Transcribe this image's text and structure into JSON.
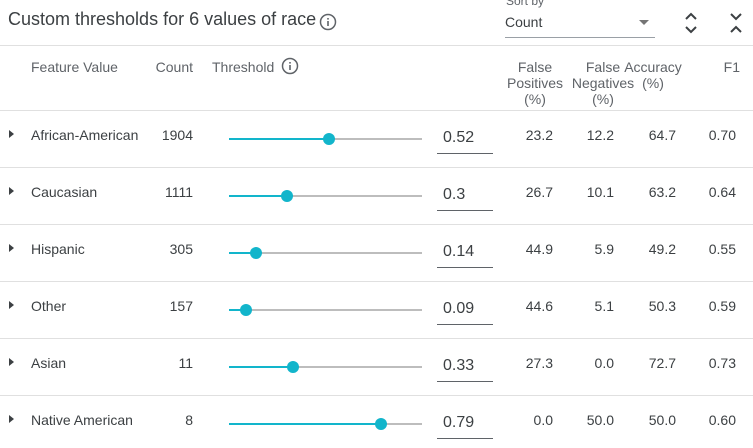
{
  "header": {
    "title": "Custom thresholds for 6 values of race",
    "sort_label": "Sort by",
    "sort_value": "Count"
  },
  "table": {
    "columns": [
      "Feature Value",
      "Count",
      "Threshold",
      "False Positives (%)",
      "False Negatives (%)",
      "Accuracy (%)",
      "F1"
    ],
    "rows": [
      {
        "feature": "African-American",
        "count": 1904,
        "threshold": 0.52,
        "fp": "23.2",
        "fn": "12.2",
        "accuracy": "64.7",
        "f1": "0.70"
      },
      {
        "feature": "Caucasian",
        "count": 1111,
        "threshold": 0.3,
        "fp": "26.7",
        "fn": "10.1",
        "accuracy": "63.2",
        "f1": "0.64"
      },
      {
        "feature": "Hispanic",
        "count": 305,
        "threshold": 0.14,
        "fp": "44.9",
        "fn": "5.9",
        "accuracy": "49.2",
        "f1": "0.55"
      },
      {
        "feature": "Other",
        "count": 157,
        "threshold": 0.09,
        "fp": "44.6",
        "fn": "5.1",
        "accuracy": "50.3",
        "f1": "0.59"
      },
      {
        "feature": "Asian",
        "count": 11,
        "threshold": 0.33,
        "fp": "27.3",
        "fn": "0.0",
        "accuracy": "72.7",
        "f1": "0.73"
      },
      {
        "feature": "Native American",
        "count": 8,
        "threshold": 0.79,
        "fp": "0.0",
        "fn": "50.0",
        "accuracy": "50.0",
        "f1": "0.60"
      }
    ]
  }
}
